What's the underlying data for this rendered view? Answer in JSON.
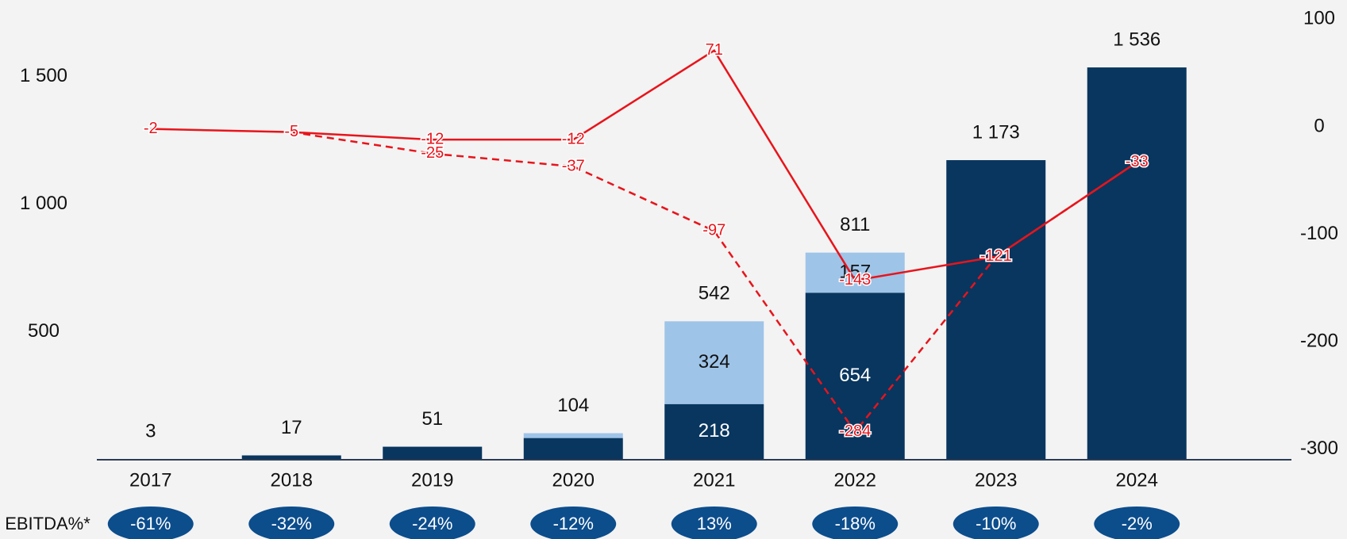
{
  "chart_data": {
    "type": "bar",
    "categories": [
      "2017",
      "2018",
      "2019",
      "2020",
      "2021",
      "2022",
      "2023",
      "2024"
    ],
    "series": [
      {
        "color": "#08365f",
        "values": [
          3,
          17,
          51,
          85,
          218,
          654,
          1173,
          1536
        ],
        "value_labels": [
          null,
          null,
          null,
          null,
          "218",
          "654",
          null,
          null
        ],
        "label_color": "#ffffff"
      },
      {
        "color": "#9ec4e8",
        "values": [
          0,
          0,
          0,
          19,
          324,
          157,
          0,
          0
        ],
        "value_labels": [
          null,
          null,
          null,
          null,
          "324",
          "157",
          null,
          null
        ],
        "label_color": "#111111"
      }
    ],
    "totals": [
      3,
      17,
      51,
      104,
      542,
      811,
      1173,
      1536
    ],
    "total_labels": [
      "3",
      "17",
      "51",
      "104",
      "542",
      "811",
      "1 173",
      "1 536"
    ],
    "lines": [
      {
        "color": "#e8141b",
        "dash": false,
        "axis": "y2",
        "values": [
          -2,
          -5,
          -12,
          -12,
          71,
          -143,
          -121,
          -33
        ]
      },
      {
        "color": "#e8141b",
        "dash": true,
        "axis": "y2",
        "values": [
          null,
          -5,
          -25,
          -37,
          -97,
          -284,
          -121,
          -33
        ]
      }
    ],
    "ylim": [
      0,
      1800
    ],
    "yticks": [
      {
        "value": 500,
        "label": "500"
      },
      {
        "value": 1000,
        "label": "1 000"
      },
      {
        "value": 1500,
        "label": "1 500"
      }
    ],
    "y2lim": [
      -310,
      118
    ],
    "y2ticks": [
      100,
      0,
      -100,
      -200,
      -300
    ],
    "ebitda": {
      "label": "EBITDA%*",
      "values": [
        -61,
        -32,
        -24,
        -12,
        13,
        -18,
        -10,
        -2
      ],
      "value_labels": [
        "-61%",
        "-32%",
        "-24%",
        "-12%",
        "13%",
        "-18%",
        "-10%",
        "-2%"
      ],
      "color": "#0c4d8c"
    }
  }
}
